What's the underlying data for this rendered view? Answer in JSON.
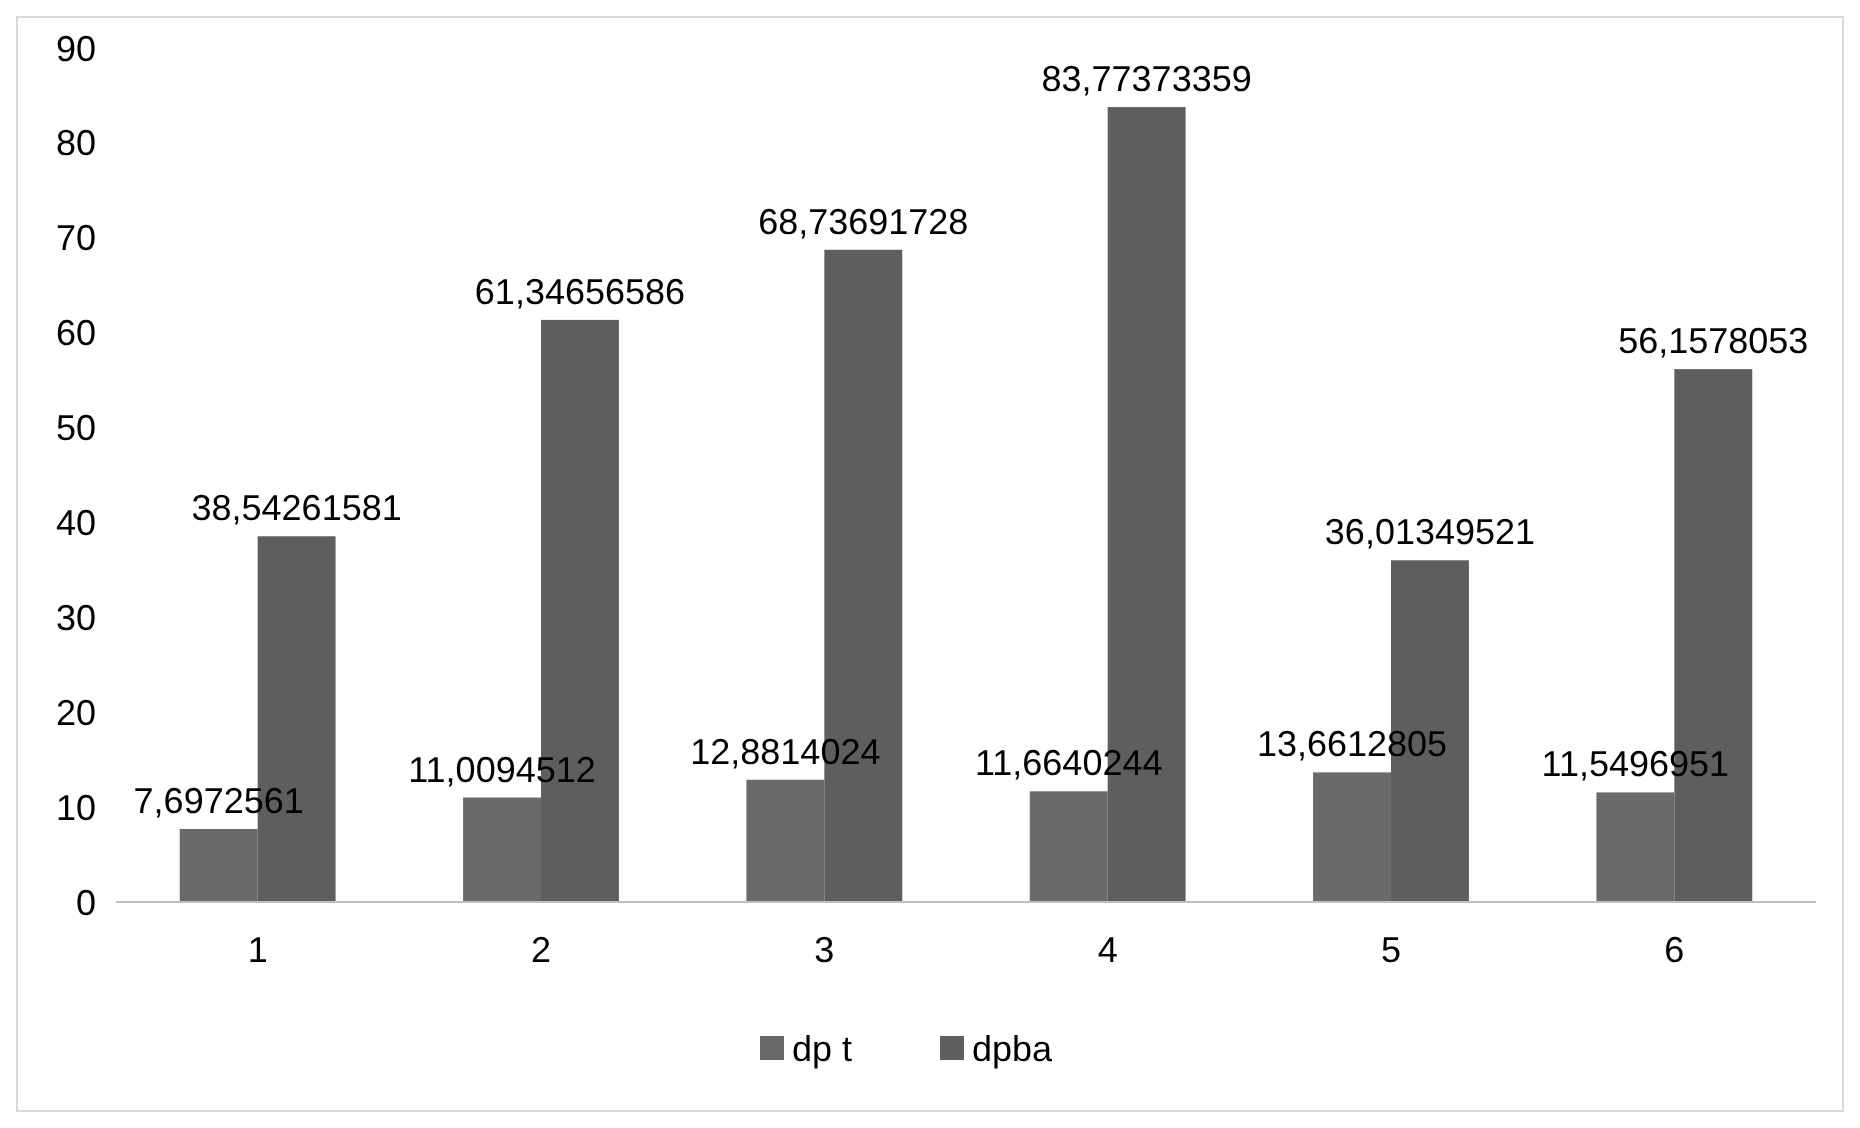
{
  "chart_data": {
    "type": "bar",
    "categories": [
      "1",
      "2",
      "3",
      "4",
      "5",
      "6"
    ],
    "series": [
      {
        "name": "dp t",
        "color": "#6a6a6a",
        "values": [
          7.6972561,
          11.0094512,
          12.8814024,
          11.6640244,
          13.6612805,
          11.5496951
        ],
        "value_labels": [
          "7,6972561",
          "11,0094512",
          "12,8814024",
          "11,6640244",
          "13,6612805",
          "11,5496951"
        ]
      },
      {
        "name": "dpba",
        "color": "#5e5e5e",
        "values": [
          38.54261581,
          61.34656586,
          68.73691728,
          83.77373359,
          36.01349521,
          56.1578053
        ],
        "value_labels": [
          "38,54261581",
          "61,34656586",
          "68,73691728",
          "83,77373359",
          "36,01349521",
          "56,1578053"
        ]
      }
    ],
    "ylim": [
      0,
      90
    ],
    "yticks": [
      0,
      10,
      20,
      30,
      40,
      50,
      60,
      70,
      80,
      90
    ],
    "grid": false,
    "legend": "bottom"
  }
}
